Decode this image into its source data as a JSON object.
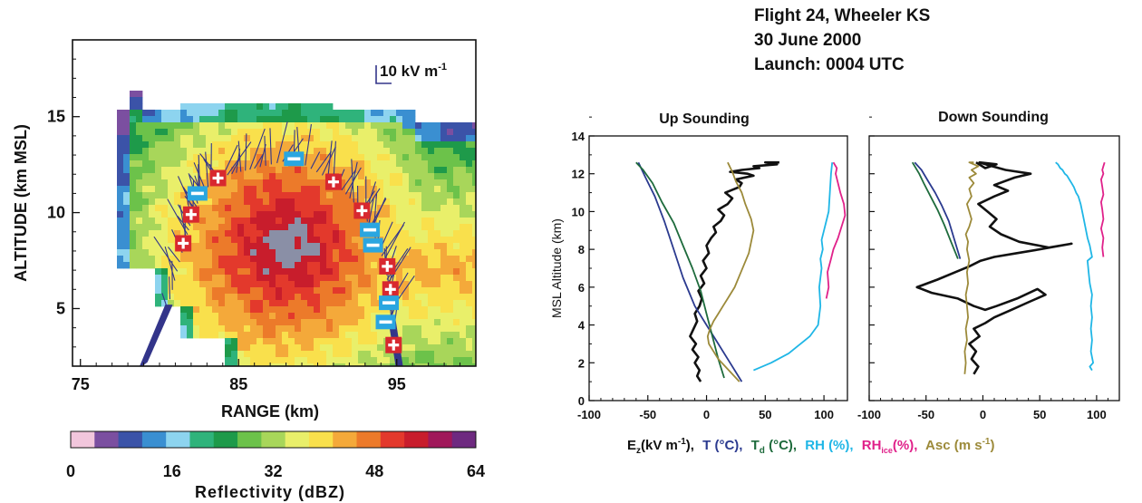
{
  "header": {
    "line1": "Flight 24, Wheeler KS",
    "line2": "30 June 2000",
    "line3": "Launch: 0004 UTC"
  },
  "colors": {
    "ez": "#111111",
    "t": "#2b3a8f",
    "td": "#1e6b3c",
    "rh": "#1fb6e6",
    "rhice": "#e0218a",
    "asc": "#9c8a3a",
    "vector": "#33358a",
    "positive_marker": "#d8282f",
    "negative_marker": "#2aa6e0"
  },
  "chart_data": [
    {
      "type": "heatmap",
      "title": "",
      "xlabel": "RANGE  (km)",
      "ylabel": "ALTITUDE  (km MSL)",
      "xlim": [
        74.5,
        100
      ],
      "ylim": [
        2,
        19
      ],
      "xticks": [
        "75",
        "85",
        "95"
      ],
      "yticks": [
        "5",
        "10",
        "15"
      ],
      "vector_scale_label": "10 kV m",
      "vector_scale_exponent": "-1",
      "charge_regions": [
        {
          "sign": "+",
          "symbol": "+",
          "x": 81.5,
          "y": 8.4
        },
        {
          "sign": "+",
          "symbol": "+",
          "x": 82.0,
          "y": 9.9
        },
        {
          "sign": "-",
          "symbol": "−",
          "x": 82.4,
          "y": 11.0
        },
        {
          "sign": "+",
          "symbol": "+",
          "x": 83.7,
          "y": 11.8
        },
        {
          "sign": "-",
          "symbol": "−",
          "x": 88.5,
          "y": 12.8
        },
        {
          "sign": "+",
          "symbol": "+",
          "x": 91.0,
          "y": 11.6
        },
        {
          "sign": "+",
          "symbol": "+",
          "x": 92.8,
          "y": 10.1
        },
        {
          "sign": "-",
          "symbol": "−",
          "x": 93.3,
          "y": 9.1
        },
        {
          "sign": "-",
          "symbol": "−",
          "x": 93.5,
          "y": 8.3
        },
        {
          "sign": "+",
          "symbol": "+",
          "x": 94.4,
          "y": 7.2
        },
        {
          "sign": "+",
          "symbol": "+",
          "x": 94.6,
          "y": 6.0
        },
        {
          "sign": "-",
          "symbol": "−",
          "x": 94.5,
          "y": 5.3
        },
        {
          "sign": "-",
          "symbol": "−",
          "x": 94.3,
          "y": 4.3
        },
        {
          "sign": "+",
          "symbol": "+",
          "x": 94.8,
          "y": 3.1
        }
      ],
      "colorbar": {
        "label": "Reflectivity  (dBZ)",
        "ticks": [
          "0",
          "16",
          "32",
          "48",
          "64"
        ],
        "colors": [
          "#f2c6dc",
          "#7b4fa0",
          "#3b53a8",
          "#3a8fd1",
          "#8dd4ef",
          "#2fb37b",
          "#1e9a4a",
          "#6cc24a",
          "#a8d65a",
          "#e9ef6a",
          "#f9e04c",
          "#f4a93a",
          "#ec7a2a",
          "#e3392c",
          "#c81d2c",
          "#a0185a",
          "#6e2a80"
        ]
      }
    },
    {
      "type": "line",
      "title": "Up Sounding",
      "xlabel": "",
      "ylabel": "MSL Altitude (km)",
      "xlim": [
        -100,
        120
      ],
      "ylim": [
        0,
        14
      ],
      "xticks": [
        "-100",
        "-50",
        "0",
        "50",
        "100"
      ],
      "yticks": [
        "0",
        "2",
        "4",
        "6",
        "8",
        "10",
        "12",
        "14"
      ],
      "series": [
        {
          "key": "ez",
          "x": [
            -5,
            -8,
            -6,
            -10,
            -7,
            -12,
            -9,
            -14,
            -11,
            -8,
            -10,
            -6,
            -4,
            -7,
            -2,
            -5,
            0,
            -3,
            2,
            0,
            4,
            8,
            6,
            12,
            15,
            10,
            18,
            22,
            16,
            28,
            30,
            25,
            40,
            35,
            20,
            30,
            45,
            40,
            60,
            50,
            62
          ],
          "y": [
            1.0,
            1.3,
            1.6,
            2.0,
            2.3,
            2.7,
            3.0,
            3.4,
            3.8,
            4.2,
            4.6,
            5.0,
            5.4,
            5.8,
            6.2,
            6.6,
            7.0,
            7.4,
            7.8,
            8.2,
            8.6,
            8.9,
            9.2,
            9.5,
            9.8,
            10.1,
            10.4,
            10.7,
            11.0,
            11.3,
            11.5,
            11.7,
            11.9,
            12.0,
            12.1,
            12.2,
            12.3,
            12.4,
            12.5,
            12.6,
            12.6
          ]
        },
        {
          "key": "t",
          "x": [
            30,
            20,
            10,
            0,
            -10,
            -20,
            -28,
            -36,
            -44,
            -52,
            -58
          ],
          "y": [
            1.0,
            2.0,
            3.0,
            4.0,
            5.0,
            6.5,
            8.0,
            9.5,
            10.8,
            11.8,
            12.6
          ]
        },
        {
          "key": "td",
          "x": [
            15,
            10,
            5,
            0,
            -5,
            -12,
            -20,
            -28,
            -38,
            -46,
            -54,
            -60
          ],
          "y": [
            1.2,
            2.2,
            3.4,
            4.6,
            5.8,
            7.0,
            8.2,
            9.4,
            10.5,
            11.5,
            12.2,
            12.6
          ]
        },
        {
          "key": "rh",
          "x": [
            40,
            55,
            70,
            80,
            88,
            95,
            97,
            96,
            98,
            97,
            99,
            98,
            100,
            102,
            104,
            105,
            106,
            107
          ],
          "y": [
            1.6,
            2.0,
            2.5,
            3.0,
            3.4,
            4.0,
            5.0,
            6.0,
            7.0,
            7.5,
            8.0,
            8.5,
            9.0,
            9.5,
            10.0,
            11.0,
            12.0,
            12.6
          ]
        },
        {
          "key": "rhice",
          "x": [
            102,
            104,
            103,
            106,
            108,
            112,
            115,
            118,
            117,
            114,
            112,
            110,
            111,
            108
          ],
          "y": [
            5.4,
            6.0,
            6.8,
            7.5,
            8.0,
            8.6,
            9.2,
            9.8,
            10.4,
            11.0,
            11.5,
            12.0,
            12.3,
            12.6
          ]
        },
        {
          "key": "asc",
          "x": [
            28,
            22,
            16,
            10,
            6,
            2,
            1,
            3,
            6,
            10,
            14,
            18,
            24,
            28,
            32,
            36,
            38,
            40,
            38,
            33,
            30,
            25,
            22,
            18
          ],
          "y": [
            1.0,
            1.4,
            1.8,
            2.2,
            2.6,
            3.0,
            3.4,
            3.8,
            4.2,
            4.6,
            5.0,
            5.4,
            6.0,
            6.6,
            7.2,
            7.8,
            8.4,
            9.0,
            9.6,
            10.4,
            11.0,
            11.6,
            12.1,
            12.6
          ]
        }
      ]
    },
    {
      "type": "line",
      "title": "Down Sounding",
      "xlabel": "",
      "ylabel": "",
      "xlim": [
        -100,
        120
      ],
      "ylim": [
        0,
        14
      ],
      "xticks": [
        "-100",
        "-50",
        "0",
        "50",
        "100"
      ],
      "yticks": [],
      "series": [
        {
          "key": "ez",
          "x": [
            -8,
            -4,
            -10,
            -6,
            -12,
            -3,
            -8,
            2,
            10,
            25,
            40,
            55,
            48,
            30,
            12,
            2,
            -8,
            -22,
            -45,
            -58,
            -40,
            -24,
            -12,
            -2,
            10,
            30,
            50,
            78,
            58,
            32,
            16,
            6,
            12,
            4,
            -4,
            10,
            22,
            10,
            28,
            42,
            20,
            8,
            -3,
            12,
            2,
            -6
          ],
          "y": [
            1.4,
            1.8,
            2.2,
            2.6,
            3.0,
            3.4,
            3.8,
            4.1,
            4.4,
            4.8,
            5.2,
            5.6,
            5.9,
            5.4,
            5.0,
            4.8,
            5.0,
            5.4,
            5.7,
            6.0,
            6.4,
            6.8,
            7.1,
            7.4,
            7.6,
            7.8,
            8.0,
            8.3,
            8.1,
            8.4,
            8.8,
            9.2,
            9.6,
            10.0,
            10.4,
            10.8,
            11.1,
            11.4,
            11.8,
            12.0,
            12.2,
            12.4,
            12.6,
            12.5,
            12.3,
            12.6
          ]
        },
        {
          "key": "t",
          "x": [
            -20,
            -25,
            -30,
            -36,
            -42,
            -48,
            -54,
            -60
          ],
          "y": [
            7.5,
            8.5,
            9.5,
            10.3,
            11.0,
            11.6,
            12.2,
            12.6
          ]
        },
        {
          "key": "td",
          "x": [
            -22,
            -28,
            -34,
            -40,
            -46,
            -52,
            -56,
            -62
          ],
          "y": [
            7.5,
            8.4,
            9.3,
            10.1,
            10.8,
            11.5,
            12.0,
            12.6
          ]
        },
        {
          "key": "rh",
          "x": [
            96,
            94,
            97,
            95,
            96,
            95,
            96,
            95,
            96,
            94,
            93,
            92,
            96,
            95,
            94,
            92,
            90,
            88,
            86,
            84,
            82,
            80,
            78,
            76,
            74,
            72,
            70,
            68,
            66,
            64
          ],
          "y": [
            1.6,
            1.8,
            2.0,
            2.6,
            3.2,
            3.8,
            4.4,
            5.0,
            5.6,
            6.2,
            6.8,
            7.4,
            7.6,
            7.9,
            8.2,
            8.6,
            9.2,
            9.8,
            10.4,
            10.8,
            11.0,
            11.3,
            11.5,
            11.7,
            11.9,
            12.0,
            12.2,
            12.3,
            12.5,
            12.6
          ]
        },
        {
          "key": "rhice",
          "x": [
            106,
            105,
            106,
            104,
            106,
            105,
            104,
            106,
            105,
            104,
            106,
            105,
            106,
            107
          ],
          "y": [
            7.6,
            8.1,
            8.6,
            9.1,
            9.6,
            10.1,
            10.5,
            10.9,
            11.3,
            11.7,
            12.0,
            12.2,
            12.4,
            12.6
          ]
        },
        {
          "key": "asc",
          "x": [
            -16,
            -15,
            -16,
            -14,
            -15,
            -13,
            -14,
            -15,
            -13,
            -14,
            -12,
            -14,
            -13,
            -15,
            -12,
            -10,
            -12,
            -14,
            -10,
            -12,
            -8,
            -12,
            -6,
            -10,
            -4,
            -8,
            -12,
            -10,
            -8
          ],
          "y": [
            1.4,
            2.0,
            2.6,
            3.2,
            3.8,
            4.4,
            5.0,
            5.6,
            6.2,
            6.8,
            7.4,
            8.0,
            8.4,
            8.8,
            9.2,
            9.6,
            10.0,
            10.4,
            10.8,
            11.2,
            11.5,
            11.8,
            12.0,
            12.2,
            12.4,
            12.5,
            12.6,
            12.6,
            12.6
          ]
        }
      ]
    }
  ],
  "legend_labels": {
    "ez_main": "E",
    "ez_sub": "z",
    "ez_unit": "(kV m",
    "ez_exp": "-1",
    "ez_end": "),",
    "t": "T (°C),",
    "td_main": "T",
    "td_sub": "d",
    "td_unit": " (°C),",
    "rh": "RH (%),",
    "rhice_main": "RH",
    "rhice_sub": "ice",
    "rhice_unit": "(%),",
    "asc_main": "Asc (m s",
    "asc_exp": "-1",
    "asc_end": ")"
  }
}
